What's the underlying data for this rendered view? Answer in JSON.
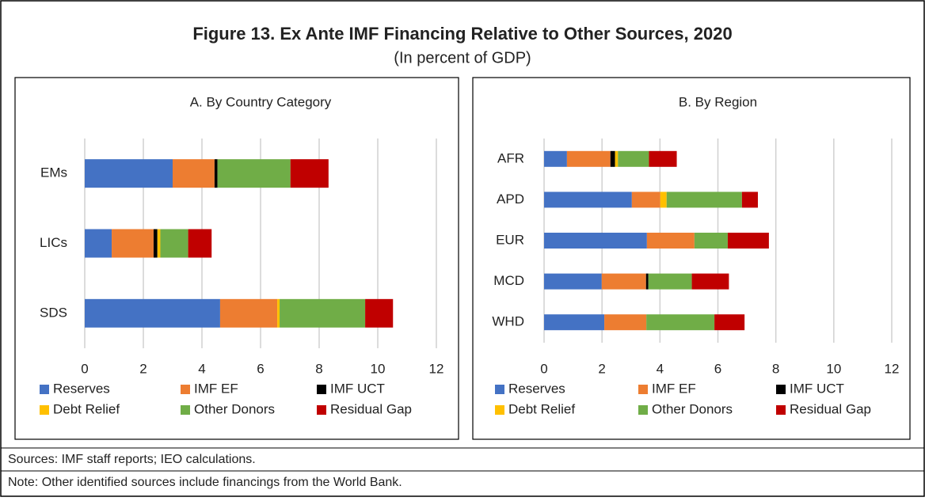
{
  "title": "Figure 13. Ex Ante IMF Financing Relative to Other Sources, 2020",
  "subtitle": "(In percent of GDP)",
  "sources": "Sources: IMF staff reports; IEO calculations.",
  "note": "Note: Other identified  sources include financings from the World Bank.",
  "chart_data": [
    {
      "type": "stacked-bar-horizontal",
      "title": "A. By Country Category",
      "categories": [
        "EMs",
        "LICs",
        "SDS"
      ],
      "series": [
        {
          "name": "Reserves",
          "color": "#4472c4",
          "values": [
            3.0,
            0.92,
            4.62
          ]
        },
        {
          "name": "IMF EF",
          "color": "#ed7d31",
          "values": [
            1.43,
            1.43,
            1.95
          ]
        },
        {
          "name": "IMF UCT",
          "color": "#000000",
          "values": [
            0.1,
            0.13,
            0
          ]
        },
        {
          "name": "Debt Relief",
          "color": "#ffc000",
          "values": [
            0,
            0.1,
            0.08
          ]
        },
        {
          "name": "Other Donors",
          "color": "#70ad47",
          "values": [
            2.49,
            0.95,
            2.92
          ]
        },
        {
          "name": "Residual Gap",
          "color": "#c00000",
          "values": [
            1.3,
            0.8,
            0.95
          ]
        }
      ],
      "xlim": [
        0,
        12
      ],
      "xticks": [
        0,
        2,
        4,
        6,
        8,
        10,
        12
      ],
      "grid": true
    },
    {
      "type": "stacked-bar-horizontal",
      "title": "B. By Region",
      "categories": [
        "AFR",
        "APD",
        "EUR",
        "MCD",
        "WHD"
      ],
      "series": [
        {
          "name": "Reserves",
          "color": "#4472c4",
          "values": [
            0.79,
            3.03,
            3.55,
            1.99,
            2.08
          ]
        },
        {
          "name": "IMF EF",
          "color": "#ed7d31",
          "values": [
            1.5,
            0.98,
            1.64,
            1.53,
            1.45
          ]
        },
        {
          "name": "IMF UCT",
          "color": "#000000",
          "values": [
            0.16,
            0,
            0,
            0.08,
            0
          ]
        },
        {
          "name": "Debt Relief",
          "color": "#ffc000",
          "values": [
            0.1,
            0.22,
            0,
            0,
            0
          ]
        },
        {
          "name": "Other Donors",
          "color": "#70ad47",
          "values": [
            1.07,
            2.6,
            1.15,
            1.5,
            2.35
          ]
        },
        {
          "name": "Residual Gap",
          "color": "#c00000",
          "values": [
            0.96,
            0.55,
            1.42,
            1.28,
            1.04
          ]
        }
      ],
      "xlim": [
        0,
        12
      ],
      "xticks": [
        0,
        2,
        4,
        6,
        8,
        10,
        12
      ],
      "grid": true
    }
  ]
}
